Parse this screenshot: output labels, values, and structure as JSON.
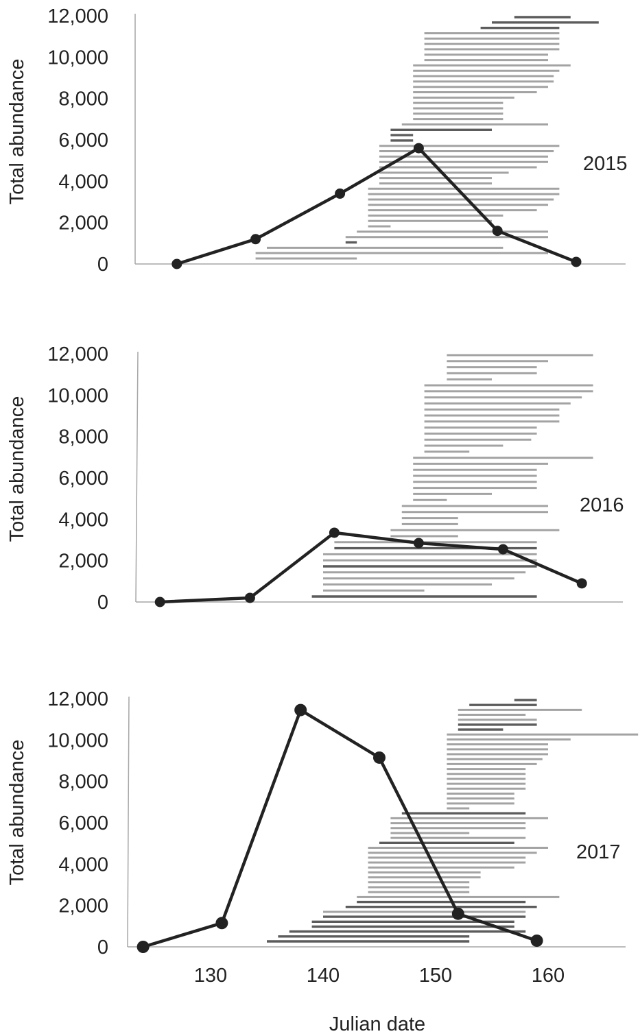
{
  "chart_data": [
    {
      "type": "line",
      "label": "2015",
      "ylabel": "Total abundance",
      "ylim": [
        0,
        12000
      ],
      "yticks": [
        "0",
        "2,000",
        "4,000",
        "6,000",
        "8,000",
        "10,000",
        "12,000"
      ],
      "ytick_values": [
        0,
        2000,
        4000,
        6000,
        8000,
        10000,
        12000
      ],
      "xlim": [
        123,
        170
      ],
      "series": [
        {
          "x": [
            127,
            134,
            141.5,
            148.5,
            155.5,
            162.5
          ],
          "y": [
            0,
            1200,
            3400,
            5600,
            1600,
            100
          ]
        }
      ],
      "ranges": [
        {
          "start": 157,
          "end": 162,
          "shade": "dark"
        },
        {
          "start": 155,
          "end": 164.5,
          "shade": "dark"
        },
        {
          "start": 154,
          "end": 161,
          "shade": "dark"
        },
        {
          "start": 149,
          "end": 161,
          "shade": "light"
        },
        {
          "start": 149,
          "end": 161,
          "shade": "light"
        },
        {
          "start": 149,
          "end": 161,
          "shade": "light"
        },
        {
          "start": 149,
          "end": 161,
          "shade": "light"
        },
        {
          "start": 149,
          "end": 160,
          "shade": "light"
        },
        {
          "start": 149,
          "end": 160,
          "shade": "light"
        },
        {
          "start": 148,
          "end": 162,
          "shade": "light"
        },
        {
          "start": 148,
          "end": 161,
          "shade": "light"
        },
        {
          "start": 148,
          "end": 160.5,
          "shade": "light"
        },
        {
          "start": 148,
          "end": 160.5,
          "shade": "light"
        },
        {
          "start": 148,
          "end": 160,
          "shade": "light"
        },
        {
          "start": 148,
          "end": 159,
          "shade": "light"
        },
        {
          "start": 148,
          "end": 157,
          "shade": "light"
        },
        {
          "start": 148,
          "end": 156,
          "shade": "light"
        },
        {
          "start": 148,
          "end": 156,
          "shade": "light"
        },
        {
          "start": 148,
          "end": 156,
          "shade": "light"
        },
        {
          "start": 148,
          "end": 156,
          "shade": "light"
        },
        {
          "start": 147,
          "end": 160,
          "shade": "light"
        },
        {
          "start": 146,
          "end": 155,
          "shade": "dark"
        },
        {
          "start": 146,
          "end": 148,
          "shade": "dark"
        },
        {
          "start": 146,
          "end": 148,
          "shade": "dark"
        },
        {
          "start": 145,
          "end": 161,
          "shade": "light"
        },
        {
          "start": 145,
          "end": 160.5,
          "shade": "light"
        },
        {
          "start": 145,
          "end": 160,
          "shade": "light"
        },
        {
          "start": 145,
          "end": 160,
          "shade": "light"
        },
        {
          "start": 145,
          "end": 159,
          "shade": "light"
        },
        {
          "start": 145,
          "end": 156.5,
          "shade": "light"
        },
        {
          "start": 145,
          "end": 155,
          "shade": "light"
        },
        {
          "start": 145,
          "end": 155,
          "shade": "light"
        },
        {
          "start": 144,
          "end": 161,
          "shade": "light"
        },
        {
          "start": 144,
          "end": 161,
          "shade": "light"
        },
        {
          "start": 144,
          "end": 160.5,
          "shade": "light"
        },
        {
          "start": 144,
          "end": 160,
          "shade": "light"
        },
        {
          "start": 144,
          "end": 159,
          "shade": "light"
        },
        {
          "start": 144,
          "end": 156,
          "shade": "light"
        },
        {
          "start": 144,
          "end": 155,
          "shade": "light"
        },
        {
          "start": 144,
          "end": 146,
          "shade": "light"
        },
        {
          "start": 143,
          "end": 160,
          "shade": "light"
        },
        {
          "start": 142,
          "end": 160,
          "shade": "light"
        },
        {
          "start": 142,
          "end": 143,
          "shade": "dark"
        },
        {
          "start": 135,
          "end": 156,
          "shade": "light"
        },
        {
          "start": 134,
          "end": 160,
          "shade": "light"
        },
        {
          "start": 134,
          "end": 143,
          "shade": "light"
        }
      ]
    },
    {
      "type": "line",
      "label": "2016",
      "ylabel": "Total abundance",
      "ylim": [
        0,
        12000
      ],
      "yticks": [
        "0",
        "2,000",
        "4,000",
        "6,000",
        "8,000",
        "10,000",
        "12,000"
      ],
      "ytick_values": [
        0,
        2000,
        4000,
        6000,
        8000,
        10000,
        12000
      ],
      "xlim": [
        123,
        170
      ],
      "series": [
        {
          "x": [
            125.5,
            133.5,
            141,
            148.5,
            156,
            163
          ],
          "y": [
            0,
            200,
            3350,
            2850,
            2550,
            900
          ]
        }
      ],
      "ranges": [
        {
          "start": 151,
          "end": 164,
          "shade": "light"
        },
        {
          "start": 151,
          "end": 160,
          "shade": "light"
        },
        {
          "start": 151,
          "end": 159,
          "shade": "light"
        },
        {
          "start": 151,
          "end": 159,
          "shade": "light"
        },
        {
          "start": 151,
          "end": 155,
          "shade": "light"
        },
        {
          "start": 149,
          "end": 164,
          "shade": "light"
        },
        {
          "start": 149,
          "end": 164,
          "shade": "light"
        },
        {
          "start": 149,
          "end": 163,
          "shade": "light"
        },
        {
          "start": 149,
          "end": 162,
          "shade": "light"
        },
        {
          "start": 149,
          "end": 161,
          "shade": "light"
        },
        {
          "start": 149,
          "end": 161,
          "shade": "light"
        },
        {
          "start": 149,
          "end": 161,
          "shade": "light"
        },
        {
          "start": 149,
          "end": 159,
          "shade": "light"
        },
        {
          "start": 149,
          "end": 159,
          "shade": "light"
        },
        {
          "start": 149,
          "end": 158.5,
          "shade": "light"
        },
        {
          "start": 149,
          "end": 156,
          "shade": "light"
        },
        {
          "start": 149,
          "end": 153,
          "shade": "light"
        },
        {
          "start": 148,
          "end": 164,
          "shade": "light"
        },
        {
          "start": 148,
          "end": 160,
          "shade": "light"
        },
        {
          "start": 148,
          "end": 159,
          "shade": "light"
        },
        {
          "start": 148,
          "end": 159,
          "shade": "light"
        },
        {
          "start": 148,
          "end": 159,
          "shade": "light"
        },
        {
          "start": 148,
          "end": 159,
          "shade": "light"
        },
        {
          "start": 148,
          "end": 155,
          "shade": "light"
        },
        {
          "start": 148,
          "end": 151,
          "shade": "light"
        },
        {
          "start": 147,
          "end": 160,
          "shade": "light"
        },
        {
          "start": 147,
          "end": 160,
          "shade": "light"
        },
        {
          "start": 147,
          "end": 152,
          "shade": "light"
        },
        {
          "start": 147,
          "end": 152,
          "shade": "light"
        },
        {
          "start": 146,
          "end": 161,
          "shade": "light"
        },
        {
          "start": 146,
          "end": 152,
          "shade": "light"
        },
        {
          "start": 141,
          "end": 159,
          "shade": "light"
        },
        {
          "start": 141,
          "end": 159,
          "shade": "dark"
        },
        {
          "start": 140,
          "end": 159,
          "shade": "light"
        },
        {
          "start": 140,
          "end": 159,
          "shade": "light"
        },
        {
          "start": 140,
          "end": 159,
          "shade": "dark"
        },
        {
          "start": 140,
          "end": 158,
          "shade": "light"
        },
        {
          "start": 140,
          "end": 157,
          "shade": "light"
        },
        {
          "start": 140,
          "end": 155,
          "shade": "light"
        },
        {
          "start": 140,
          "end": 149,
          "shade": "light"
        },
        {
          "start": 139,
          "end": 159,
          "shade": "dark"
        }
      ]
    },
    {
      "type": "line",
      "label": "2017",
      "ylabel": "Total abundance",
      "xlabel": "Julian date",
      "ylim": [
        0,
        12000
      ],
      "yticks": [
        "0",
        "2,000",
        "4,000",
        "6,000",
        "8,000",
        "10,000",
        "12,000"
      ],
      "ytick_values": [
        0,
        2000,
        4000,
        6000,
        8000,
        10000,
        12000
      ],
      "xlim": [
        123,
        170
      ],
      "xticks": [
        "130",
        "140",
        "150",
        "160"
      ],
      "xtick_values": [
        130,
        140,
        150,
        160
      ],
      "series": [
        {
          "x": [
            124,
            131,
            138,
            145,
            152,
            159
          ],
          "y": [
            0,
            1150,
            11450,
            9150,
            1600,
            300
          ]
        }
      ],
      "ranges": [
        {
          "start": 157,
          "end": 159,
          "shade": "dark"
        },
        {
          "start": 153,
          "end": 159,
          "shade": "dark"
        },
        {
          "start": 152,
          "end": 163,
          "shade": "light"
        },
        {
          "start": 152,
          "end": 158,
          "shade": "light"
        },
        {
          "start": 152,
          "end": 159,
          "shade": "light"
        },
        {
          "start": 152,
          "end": 159,
          "shade": "dark"
        },
        {
          "start": 152,
          "end": 156,
          "shade": "dark"
        },
        {
          "start": 151,
          "end": 168,
          "shade": "light"
        },
        {
          "start": 151,
          "end": 162,
          "shade": "light"
        },
        {
          "start": 151,
          "end": 160,
          "shade": "light"
        },
        {
          "start": 151,
          "end": 160,
          "shade": "light"
        },
        {
          "start": 151,
          "end": 160,
          "shade": "light"
        },
        {
          "start": 151,
          "end": 159.5,
          "shade": "light"
        },
        {
          "start": 151,
          "end": 159,
          "shade": "light"
        },
        {
          "start": 151,
          "end": 158,
          "shade": "light"
        },
        {
          "start": 151,
          "end": 158,
          "shade": "light"
        },
        {
          "start": 151,
          "end": 158,
          "shade": "light"
        },
        {
          "start": 151,
          "end": 158,
          "shade": "light"
        },
        {
          "start": 151,
          "end": 158,
          "shade": "light"
        },
        {
          "start": 151,
          "end": 157,
          "shade": "light"
        },
        {
          "start": 151,
          "end": 157,
          "shade": "light"
        },
        {
          "start": 151,
          "end": 157,
          "shade": "light"
        },
        {
          "start": 151,
          "end": 153,
          "shade": "light"
        },
        {
          "start": 147,
          "end": 158,
          "shade": "dark"
        },
        {
          "start": 146,
          "end": 160,
          "shade": "light"
        },
        {
          "start": 146,
          "end": 158,
          "shade": "light"
        },
        {
          "start": 146,
          "end": 158,
          "shade": "light"
        },
        {
          "start": 146,
          "end": 153,
          "shade": "light"
        },
        {
          "start": 146,
          "end": 158,
          "shade": "light"
        },
        {
          "start": 145,
          "end": 157,
          "shade": "dark"
        },
        {
          "start": 144,
          "end": 160,
          "shade": "light"
        },
        {
          "start": 144,
          "end": 159,
          "shade": "light"
        },
        {
          "start": 144,
          "end": 158,
          "shade": "light"
        },
        {
          "start": 144,
          "end": 158,
          "shade": "light"
        },
        {
          "start": 144,
          "end": 157,
          "shade": "light"
        },
        {
          "start": 144,
          "end": 154,
          "shade": "light"
        },
        {
          "start": 144,
          "end": 154,
          "shade": "light"
        },
        {
          "start": 144,
          "end": 153,
          "shade": "light"
        },
        {
          "start": 144,
          "end": 153,
          "shade": "light"
        },
        {
          "start": 144,
          "end": 153,
          "shade": "light"
        },
        {
          "start": 143,
          "end": 161,
          "shade": "light"
        },
        {
          "start": 143,
          "end": 158,
          "shade": "dark"
        },
        {
          "start": 142,
          "end": 159,
          "shade": "dark"
        },
        {
          "start": 140,
          "end": 158,
          "shade": "light"
        },
        {
          "start": 140,
          "end": 158,
          "shade": "dark"
        },
        {
          "start": 139,
          "end": 157,
          "shade": "dark"
        },
        {
          "start": 139,
          "end": 157,
          "shade": "dark"
        },
        {
          "start": 137,
          "end": 158,
          "shade": "dark"
        },
        {
          "start": 136,
          "end": 153,
          "shade": "dark"
        },
        {
          "start": 135,
          "end": 153,
          "shade": "dark"
        }
      ]
    }
  ],
  "colors": {
    "line": "#222222",
    "range_light": "#a3a3a3",
    "range_dark": "#5c5c5c",
    "axis": "#a6a6a6"
  }
}
